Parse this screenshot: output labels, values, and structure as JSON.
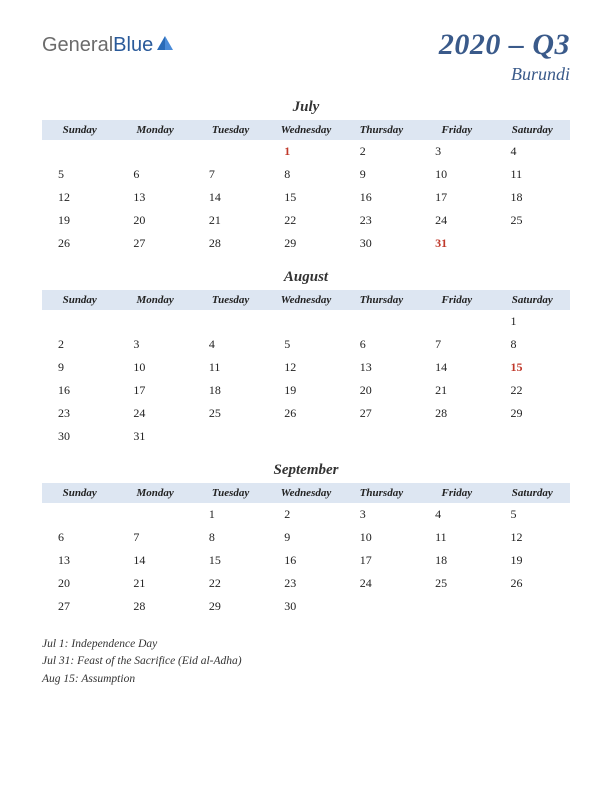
{
  "logo": {
    "general": "General",
    "blue": "Blue"
  },
  "title": {
    "main": "2020 – Q3",
    "sub": "Burundi"
  },
  "days": [
    "Sunday",
    "Monday",
    "Tuesday",
    "Wednesday",
    "Thursday",
    "Friday",
    "Saturday"
  ],
  "months": [
    {
      "name": "July",
      "weeks": [
        [
          null,
          null,
          null,
          {
            "d": 1,
            "h": true
          },
          {
            "d": 2
          },
          {
            "d": 3
          },
          {
            "d": 4
          }
        ],
        [
          {
            "d": 5
          },
          {
            "d": 6
          },
          {
            "d": 7
          },
          {
            "d": 8
          },
          {
            "d": 9
          },
          {
            "d": 10
          },
          {
            "d": 11
          }
        ],
        [
          {
            "d": 12
          },
          {
            "d": 13
          },
          {
            "d": 14
          },
          {
            "d": 15
          },
          {
            "d": 16
          },
          {
            "d": 17
          },
          {
            "d": 18
          }
        ],
        [
          {
            "d": 19
          },
          {
            "d": 20
          },
          {
            "d": 21
          },
          {
            "d": 22
          },
          {
            "d": 23
          },
          {
            "d": 24
          },
          {
            "d": 25
          }
        ],
        [
          {
            "d": 26
          },
          {
            "d": 27
          },
          {
            "d": 28
          },
          {
            "d": 29
          },
          {
            "d": 30
          },
          {
            "d": 31,
            "h": true
          },
          null
        ]
      ]
    },
    {
      "name": "August",
      "weeks": [
        [
          null,
          null,
          null,
          null,
          null,
          null,
          {
            "d": 1
          }
        ],
        [
          {
            "d": 2
          },
          {
            "d": 3
          },
          {
            "d": 4
          },
          {
            "d": 5
          },
          {
            "d": 6
          },
          {
            "d": 7
          },
          {
            "d": 8
          }
        ],
        [
          {
            "d": 9
          },
          {
            "d": 10
          },
          {
            "d": 11
          },
          {
            "d": 12
          },
          {
            "d": 13
          },
          {
            "d": 14
          },
          {
            "d": 15,
            "h": true
          }
        ],
        [
          {
            "d": 16
          },
          {
            "d": 17
          },
          {
            "d": 18
          },
          {
            "d": 19
          },
          {
            "d": 20
          },
          {
            "d": 21
          },
          {
            "d": 22
          }
        ],
        [
          {
            "d": 23
          },
          {
            "d": 24
          },
          {
            "d": 25
          },
          {
            "d": 26
          },
          {
            "d": 27
          },
          {
            "d": 28
          },
          {
            "d": 29
          }
        ],
        [
          {
            "d": 30
          },
          {
            "d": 31
          },
          null,
          null,
          null,
          null,
          null
        ]
      ]
    },
    {
      "name": "September",
      "weeks": [
        [
          null,
          null,
          {
            "d": 1
          },
          {
            "d": 2
          },
          {
            "d": 3
          },
          {
            "d": 4
          },
          {
            "d": 5
          }
        ],
        [
          {
            "d": 6
          },
          {
            "d": 7
          },
          {
            "d": 8
          },
          {
            "d": 9
          },
          {
            "d": 10
          },
          {
            "d": 11
          },
          {
            "d": 12
          }
        ],
        [
          {
            "d": 13
          },
          {
            "d": 14
          },
          {
            "d": 15
          },
          {
            "d": 16
          },
          {
            "d": 17
          },
          {
            "d": 18
          },
          {
            "d": 19
          }
        ],
        [
          {
            "d": 20
          },
          {
            "d": 21
          },
          {
            "d": 22
          },
          {
            "d": 23
          },
          {
            "d": 24
          },
          {
            "d": 25
          },
          {
            "d": 26
          }
        ],
        [
          {
            "d": 27
          },
          {
            "d": 28
          },
          {
            "d": 29
          },
          {
            "d": 30
          },
          null,
          null,
          null
        ]
      ]
    }
  ],
  "holidays": [
    "Jul 1: Independence Day",
    "Jul 31: Feast of the Sacrifice (Eid al-Adha)",
    "Aug 15: Assumption"
  ],
  "colors": {
    "header_bg": "#dde6f2",
    "title_color": "#3a5a8a",
    "holiday_color": "#c0392b"
  }
}
